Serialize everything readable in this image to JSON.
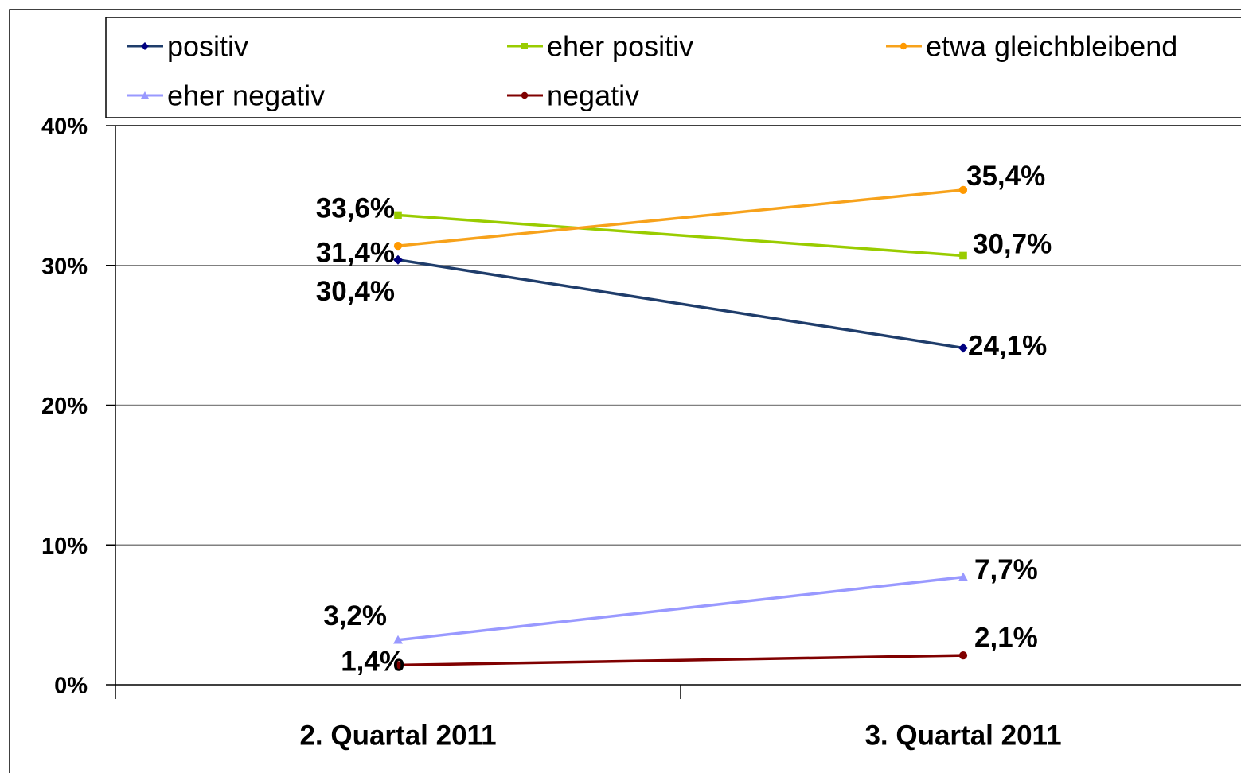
{
  "chart_data": {
    "type": "line",
    "categories": [
      "2. Quartal 2011",
      "3. Quartal 2011"
    ],
    "series": [
      {
        "name": "positiv",
        "color": "#000080",
        "marker": "diamond",
        "values": [
          30.4,
          24.1
        ],
        "value_labels": [
          "30,4%",
          "24,1%"
        ]
      },
      {
        "name": "eher positiv",
        "color": "#99cc00",
        "marker": "square",
        "values": [
          33.6,
          30.7
        ],
        "value_labels": [
          "33,6%",
          "30,7%"
        ]
      },
      {
        "name": "etwa gleichbleibend",
        "color": "#ff9900",
        "marker": "circle",
        "values": [
          31.4,
          35.4
        ],
        "value_labels": [
          "31,4%",
          "35,4%"
        ]
      },
      {
        "name": "eher negativ",
        "color": "#9999ff",
        "marker": "triangle",
        "values": [
          3.2,
          7.7
        ],
        "value_labels": [
          "3,2%",
          "7,7%"
        ]
      },
      {
        "name": "negativ",
        "color": "#800000",
        "marker": "circle",
        "values": [
          1.4,
          2.1
        ],
        "value_labels": [
          "1,4%",
          "2,1%"
        ]
      }
    ],
    "ylim": [
      0,
      40
    ],
    "yticks": [
      {
        "value": 0,
        "label": "0%"
      },
      {
        "value": 10,
        "label": "10%"
      },
      {
        "value": 20,
        "label": "20%"
      },
      {
        "value": 30,
        "label": "30%"
      },
      {
        "value": 40,
        "label": "40%"
      }
    ],
    "grid": true,
    "legend": "top"
  }
}
